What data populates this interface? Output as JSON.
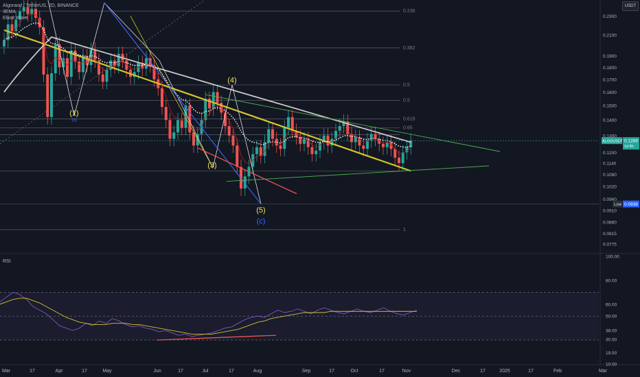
{
  "legend": {
    "pair": "Algorand / TetherUS, 2D, BINANCE",
    "ind1": "3EMA",
    "ind2": "Elliott Wave"
  },
  "currency_button": "USDT",
  "rsi_label": "RSI",
  "colors": {
    "bg": "#131722",
    "up": "#26a69a",
    "down": "#ef5350",
    "ema_yellow": "#d4c52a",
    "ema_white": "#c9c9c9",
    "wave_blue": "#3d67ff",
    "fib_line": "#5d606b",
    "rsi_line": "#7e57c2",
    "rsi_ma": "#d4c52a",
    "green_trend": "#4caf50",
    "red_trend": "#ef5350"
  },
  "chart_data": {
    "type": "candlestick",
    "symbol": "ALGOUSDT, 2D",
    "price_axis": {
      "scale": "log",
      "range": [
        0.075,
        0.245
      ],
      "ticks": [
        "0.2300",
        "0.2100",
        "0.1900",
        "0.1800",
        "0.1700",
        "0.1600",
        "0.1500",
        "0.1400",
        "0.1300",
        "0.1200",
        "0.1140",
        "0.1080",
        "0.1020",
        "0.0960",
        "0.0910",
        "0.0860",
        "0.0815",
        "0.0775"
      ],
      "last_price_label": "ALGOUSDT",
      "last_price": "0.1269",
      "countdown": "1d 8h",
      "low_label": "Low",
      "low_value": "0.0938"
    },
    "time_axis": {
      "labels": [
        "Mar",
        "17",
        "Apr",
        "17",
        "May",
        "Jun",
        "17",
        "Jul",
        "17",
        "Aug",
        "Sep",
        "17",
        "Oct",
        "17",
        "Nov",
        "Dec",
        "17",
        "2025",
        "17",
        "Feb",
        "Mar"
      ]
    },
    "fib_levels": [
      {
        "label": "0.236",
        "value": 0.2355
      },
      {
        "label": "0.382",
        "value": 0.1975
      },
      {
        "label": "0.5",
        "value": 0.1655
      },
      {
        "label": "0.5",
        "value": 0.1538
      },
      {
        "label": "0.618",
        "value": 0.1408
      },
      {
        "label": "0.65",
        "value": 0.1348
      },
      {
        "label": "",
        "value": 0.1305
      },
      {
        "label": "",
        "value": 0.1098
      },
      {
        "label": "1",
        "value": 0.083
      }
    ],
    "low_line": 0.0938,
    "wave_labels": [
      {
        "text": "(1)",
        "sub": "(a)",
        "x_date": "Apr 02",
        "price": 0.143
      },
      {
        "text": "(3)",
        "x_date": "Jul 05",
        "price": 0.1115
      },
      {
        "text": "(4)",
        "x_date": "Jul 16",
        "price": 0.1675
      },
      {
        "text": "(5)",
        "x_date": "Aug 05",
        "price": 0.09
      },
      {
        "text": "(c)",
        "x_date": "Aug 05",
        "price": 0.0855
      }
    ],
    "closes": [
      0.205,
      0.221,
      0.214,
      0.226,
      0.235,
      0.24,
      0.232,
      0.238,
      0.228,
      0.218,
      0.174,
      0.142,
      0.175,
      0.201,
      0.18,
      0.188,
      0.172,
      0.195,
      0.185,
      0.176,
      0.19,
      0.182,
      0.196,
      0.186,
      0.174,
      0.168,
      0.178,
      0.186,
      0.181,
      0.192,
      0.186,
      0.178,
      0.172,
      0.176,
      0.184,
      0.179,
      0.188,
      0.182,
      0.17,
      0.163,
      0.149,
      0.14,
      0.128,
      0.132,
      0.14,
      0.135,
      0.15,
      0.132,
      0.124,
      0.131,
      0.14,
      0.155,
      0.148,
      0.16,
      0.152,
      0.145,
      0.136,
      0.13,
      0.124,
      0.112,
      0.101,
      0.107,
      0.112,
      0.119,
      0.123,
      0.118,
      0.126,
      0.134,
      0.128,
      0.124,
      0.122,
      0.135,
      0.142,
      0.133,
      0.129,
      0.125,
      0.128,
      0.123,
      0.119,
      0.121,
      0.126,
      0.13,
      0.124,
      0.128,
      0.133,
      0.136,
      0.139,
      0.131,
      0.126,
      0.129,
      0.124,
      0.122,
      0.127,
      0.131,
      0.128,
      0.125,
      0.123,
      0.126,
      0.122,
      0.117,
      0.114,
      0.12,
      0.123,
      0.1269
    ],
    "series": [
      {
        "name": "RSI",
        "values": [
          62,
          66,
          70,
          68,
          64,
          58,
          55,
          52,
          47,
          42,
          40,
          38,
          40,
          44,
          42,
          46,
          44,
          48,
          46,
          43,
          41,
          42,
          40,
          39,
          37,
          38,
          36,
          34,
          35,
          33,
          34,
          35,
          36,
          38,
          40,
          41,
          44,
          47,
          49,
          50,
          49,
          52,
          55,
          53,
          54,
          56,
          54,
          52,
          55,
          57,
          55,
          53,
          52,
          54,
          56,
          54,
          53,
          55,
          57,
          54,
          52,
          51,
          53,
          55
        ]
      },
      {
        "name": "RSI MA",
        "values": [
          60,
          62,
          64,
          65,
          65,
          63,
          61,
          58,
          55,
          52,
          49,
          47,
          45,
          44,
          43,
          43,
          43,
          44,
          44,
          44,
          43,
          43,
          42,
          41,
          40,
          39,
          38,
          37,
          36,
          35,
          35,
          35,
          35,
          36,
          37,
          38,
          39,
          41,
          43,
          45,
          46,
          48,
          49,
          50,
          51,
          52,
          53,
          53,
          53,
          53,
          54,
          54,
          54,
          54,
          54,
          54,
          54,
          54,
          54,
          54,
          54,
          54,
          54,
          54
        ]
      }
    ],
    "rsi_axis": {
      "range": [
        10,
        100
      ],
      "ticks": [
        "100.00",
        "80.00",
        "60.00",
        "50.00",
        "38.00",
        "30.50",
        "19.50",
        "10.00"
      ]
    }
  }
}
